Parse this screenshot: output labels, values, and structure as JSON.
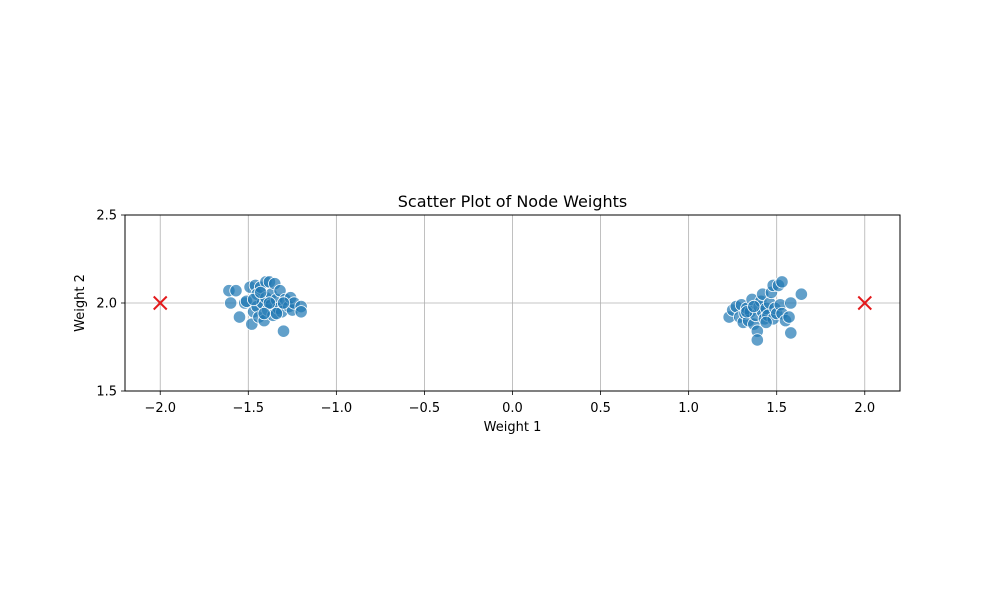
{
  "chart_data": {
    "type": "scatter",
    "title": "Scatter Plot of Node Weights",
    "xlabel": "Weight 1",
    "ylabel": "Weight 2",
    "xlim": [
      -2.2,
      2.2
    ],
    "ylim": [
      1.5,
      2.5
    ],
    "xticks": [
      -2.0,
      -1.5,
      -1.0,
      -0.5,
      0.0,
      0.5,
      1.0,
      1.5,
      2.0
    ],
    "xtick_labels": [
      "−2.0",
      "−1.5",
      "−1.0",
      "−0.5",
      "0.0",
      "0.5",
      "1.0",
      "1.5",
      "2.0"
    ],
    "yticks": [
      1.5,
      2.0,
      2.5
    ],
    "ytick_labels": [
      "1.5",
      "2.0",
      "2.5"
    ],
    "grid": true,
    "series": [
      {
        "marker": "circle",
        "color": "#1f77b4",
        "points": [
          [
            -1.61,
            2.07
          ],
          [
            -1.57,
            2.07
          ],
          [
            -1.6,
            2.0
          ],
          [
            -1.55,
            1.92
          ],
          [
            -1.52,
            2.0
          ],
          [
            -1.51,
            2.01
          ],
          [
            -1.49,
            2.09
          ],
          [
            -1.48,
            1.88
          ],
          [
            -1.47,
            1.95
          ],
          [
            -1.46,
            2.1
          ],
          [
            -1.45,
            2.05
          ],
          [
            -1.45,
            1.98
          ],
          [
            -1.44,
            1.92
          ],
          [
            -1.43,
            2.09
          ],
          [
            -1.42,
            2.0
          ],
          [
            -1.41,
            1.9
          ],
          [
            -1.4,
            2.12
          ],
          [
            -1.4,
            2.03
          ],
          [
            -1.39,
            1.96
          ],
          [
            -1.38,
            2.12
          ],
          [
            -1.37,
            2.05
          ],
          [
            -1.37,
            1.99
          ],
          [
            -1.36,
            1.93
          ],
          [
            -1.35,
            2.11
          ],
          [
            -1.34,
            2.02
          ],
          [
            -1.33,
            1.97
          ],
          [
            -1.32,
            2.07
          ],
          [
            -1.31,
            1.95
          ],
          [
            -1.3,
            1.84
          ],
          [
            -1.29,
            2.02
          ],
          [
            -1.27,
            1.98
          ],
          [
            -1.26,
            2.03
          ],
          [
            -1.25,
            1.96
          ],
          [
            -1.24,
            2.0
          ],
          [
            -1.2,
            1.98
          ],
          [
            -1.2,
            1.95
          ],
          [
            -1.47,
            2.02
          ],
          [
            -1.43,
            2.06
          ],
          [
            -1.38,
            2.0
          ],
          [
            -1.34,
            1.94
          ],
          [
            -1.3,
            2.0
          ],
          [
            -1.41,
            1.94
          ],
          [
            1.23,
            1.92
          ],
          [
            1.25,
            1.96
          ],
          [
            1.27,
            1.98
          ],
          [
            1.29,
            1.92
          ],
          [
            1.3,
            1.99
          ],
          [
            1.31,
            1.89
          ],
          [
            1.32,
            1.94
          ],
          [
            1.33,
            1.97
          ],
          [
            1.34,
            1.9
          ],
          [
            1.35,
            1.95
          ],
          [
            1.36,
            2.02
          ],
          [
            1.37,
            1.88
          ],
          [
            1.38,
            1.93
          ],
          [
            1.39,
            1.84
          ],
          [
            1.39,
            1.79
          ],
          [
            1.4,
            1.98
          ],
          [
            1.41,
            2.01
          ],
          [
            1.42,
            2.05
          ],
          [
            1.42,
            1.95
          ],
          [
            1.43,
            1.91
          ],
          [
            1.44,
            1.97
          ],
          [
            1.45,
            1.93
          ],
          [
            1.46,
            2.0
          ],
          [
            1.47,
            2.06
          ],
          [
            1.48,
            2.1
          ],
          [
            1.48,
            1.91
          ],
          [
            1.49,
            1.97
          ],
          [
            1.5,
            1.94
          ],
          [
            1.51,
            2.1
          ],
          [
            1.52,
            1.99
          ],
          [
            1.53,
            2.12
          ],
          [
            1.53,
            1.94
          ],
          [
            1.55,
            1.9
          ],
          [
            1.57,
            1.92
          ],
          [
            1.58,
            2.0
          ],
          [
            1.58,
            1.83
          ],
          [
            1.64,
            2.05
          ],
          [
            1.33,
            1.95
          ],
          [
            1.37,
            1.98
          ],
          [
            1.44,
            1.89
          ]
        ]
      },
      {
        "marker": "x",
        "color": "#e31a1c",
        "points": [
          [
            -2.0,
            2.0
          ],
          [
            2.0,
            2.0
          ]
        ]
      }
    ]
  }
}
